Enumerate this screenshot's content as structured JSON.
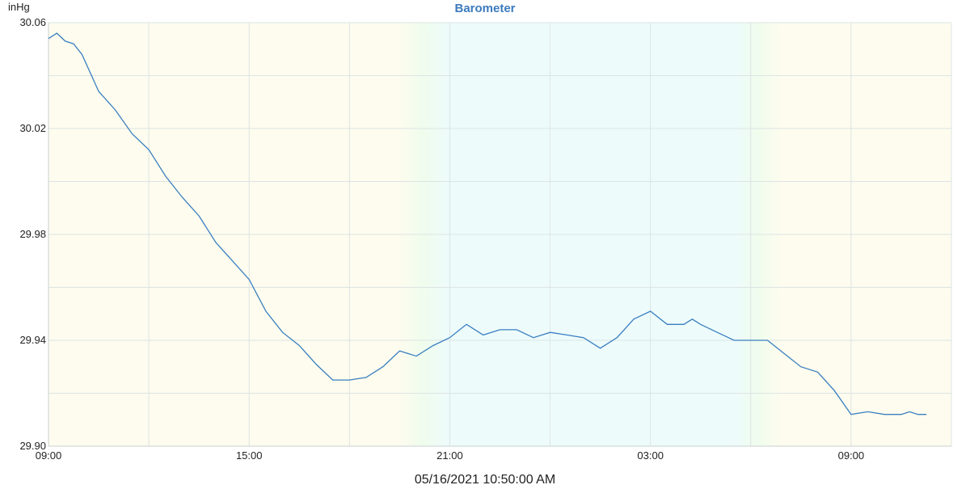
{
  "chart_data": {
    "type": "line",
    "title": "Barometer",
    "ylabel": "inHg",
    "xlabel": "05/16/2021 10:50:00 AM",
    "ylim": [
      29.9,
      30.06
    ],
    "y_ticks": [
      "30.06",
      "30.02",
      "29.98",
      "29.94",
      "29.90"
    ],
    "y_tick_values": [
      30.06,
      30.02,
      29.98,
      29.94,
      29.9
    ],
    "x_range_hours": [
      0,
      27
    ],
    "x_ticks": [
      "09:00",
      "15:00",
      "21:00",
      "03:00",
      "09:00"
    ],
    "x_tick_hours": [
      0,
      6,
      12,
      18,
      24
    ],
    "grid": true,
    "series": [
      {
        "color": "#3a7fc1",
        "x_hours": [
          0,
          0.25,
          0.5,
          0.75,
          1.0,
          1.5,
          2.0,
          2.5,
          3.0,
          3.5,
          4.0,
          4.5,
          5.0,
          5.5,
          6.0,
          6.5,
          7.0,
          7.5,
          8.0,
          8.5,
          9.0,
          9.5,
          10.0,
          10.5,
          11.0,
          11.5,
          12.0,
          12.5,
          13.0,
          13.5,
          14.0,
          14.5,
          15.0,
          15.5,
          16.0,
          16.5,
          17.0,
          17.5,
          18.0,
          18.5,
          19.0,
          19.25,
          19.5,
          20.0,
          20.5,
          21.0,
          21.5,
          22.0,
          22.5,
          23.0,
          23.5,
          24.0,
          24.5,
          25.0,
          25.5,
          25.75,
          26.0,
          26.25
        ],
        "values": [
          30.054,
          30.056,
          30.053,
          30.052,
          30.048,
          30.034,
          30.027,
          30.018,
          30.012,
          30.002,
          29.994,
          29.987,
          29.977,
          29.97,
          29.963,
          29.951,
          29.943,
          29.938,
          29.931,
          29.925,
          29.925,
          29.926,
          29.93,
          29.936,
          29.934,
          29.938,
          29.941,
          29.946,
          29.942,
          29.944,
          29.944,
          29.941,
          29.943,
          29.942,
          29.941,
          29.937,
          29.941,
          29.948,
          29.951,
          29.946,
          29.946,
          29.948,
          29.946,
          29.943,
          29.94,
          29.94,
          29.94,
          29.935,
          29.93,
          29.928,
          29.921,
          29.912,
          29.913,
          29.912,
          29.912,
          29.913,
          29.912,
          29.912
        ]
      }
    ],
    "night_band_hours": [
      11.5,
      21.5
    ],
    "day_color": "#fdfcee",
    "night_color": "#edfbfb",
    "transition_color": "#effced",
    "grid_color": "#dde4e4"
  }
}
